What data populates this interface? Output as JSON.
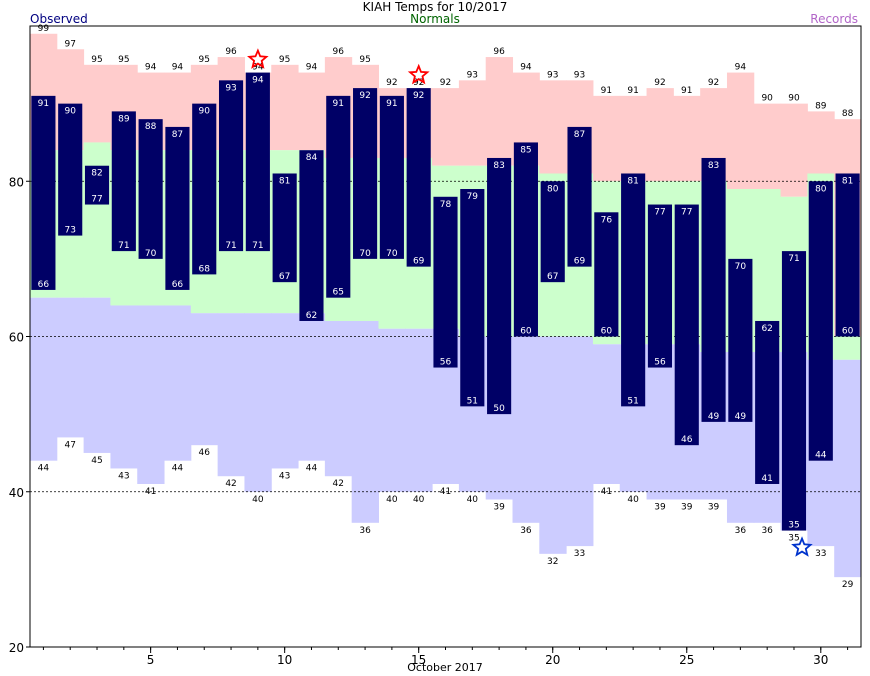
{
  "chart_data": {
    "type": "bar",
    "title": "KIAH Temps for 10/2017",
    "subtitle": "Normals",
    "legend": {
      "observed": "Observed",
      "records": "Records"
    },
    "xlabel": "October 2017",
    "ylim": [
      20,
      100
    ],
    "yticks": [
      20,
      40,
      60,
      80
    ],
    "xticks": [
      5,
      10,
      15,
      20,
      25,
      30
    ],
    "grid_lines": [
      40,
      60,
      80
    ],
    "colors": {
      "observed": "#000066",
      "record_band": "#ffcccc",
      "normal_band": "#ccffcc",
      "low_band": "#ccccff",
      "record_high_star": "#ff0000",
      "record_low_star": "#0033cc",
      "grid": "#000000",
      "axis": "#000000"
    },
    "days": [
      1,
      2,
      3,
      4,
      5,
      6,
      7,
      8,
      9,
      10,
      11,
      12,
      13,
      14,
      15,
      16,
      17,
      18,
      19,
      20,
      21,
      22,
      23,
      24,
      25,
      26,
      27,
      28,
      29,
      30,
      31
    ],
    "observed_high": [
      91,
      90,
      82,
      89,
      88,
      87,
      90,
      93,
      94,
      81,
      84,
      91,
      92,
      91,
      92,
      78,
      79,
      83,
      85,
      80,
      87,
      76,
      81,
      77,
      77,
      83,
      70,
      62,
      71,
      80,
      81
    ],
    "observed_low": [
      66,
      73,
      77,
      71,
      70,
      66,
      68,
      71,
      71,
      67,
      62,
      65,
      70,
      70,
      69,
      56,
      51,
      50,
      60,
      67,
      69,
      60,
      51,
      56,
      46,
      49,
      49,
      41,
      35,
      44,
      60
    ],
    "record_high": [
      99,
      97,
      95,
      95,
      94,
      94,
      95,
      96,
      94,
      95,
      94,
      96,
      95,
      92,
      92,
      92,
      93,
      96,
      94,
      93,
      93,
      91,
      91,
      92,
      91,
      92,
      94,
      90,
      90,
      89,
      88
    ],
    "record_low": [
      44,
      47,
      45,
      43,
      41,
      44,
      46,
      42,
      40,
      43,
      44,
      42,
      36,
      40,
      40,
      41,
      40,
      39,
      36,
      32,
      33,
      41,
      40,
      39,
      39,
      39,
      36,
      36,
      35,
      33,
      29
    ],
    "normal_high": [
      84,
      84,
      85,
      84,
      84,
      84,
      84,
      84,
      84,
      84,
      84,
      83,
      83,
      83,
      83,
      82,
      82,
      82,
      82,
      81,
      81,
      80,
      80,
      80,
      80,
      80,
      79,
      79,
      78,
      81,
      60
    ],
    "normal_low": [
      65,
      65,
      65,
      64,
      64,
      64,
      63,
      63,
      63,
      63,
      63,
      62,
      62,
      61,
      61,
      61,
      60,
      60,
      60,
      60,
      60,
      59,
      59,
      59,
      59,
      58,
      58,
      58,
      58,
      57,
      57
    ],
    "record_high_set_days": [
      9,
      15
    ],
    "record_low_set_days": [
      29
    ]
  }
}
